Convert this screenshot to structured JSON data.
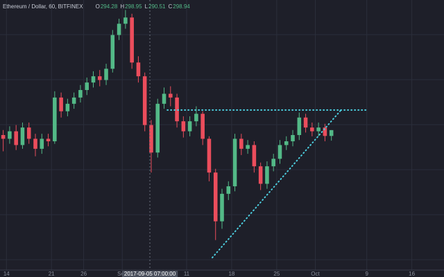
{
  "chart_data": {
    "type": "candlestick",
    "title": "Ethereum / Dollar, 60, BITFINEX",
    "ohlc_legend": [
      {
        "label": "O",
        "value": 294.28
      },
      {
        "label": "H",
        "value": 298.95
      },
      {
        "label": "L",
        "value": 290.51
      },
      {
        "label": "C",
        "value": 298.94
      }
    ],
    "x": [
      "2017-08-13",
      "2017-08-14",
      "2017-08-15",
      "2017-08-16",
      "2017-08-17",
      "2017-08-18",
      "2017-08-19",
      "2017-08-20",
      "2017-08-21",
      "2017-08-22",
      "2017-08-23",
      "2017-08-24",
      "2017-08-25",
      "2017-08-26",
      "2017-08-27",
      "2017-08-28",
      "2017-08-29",
      "2017-08-30",
      "2017-08-31",
      "2017-09-01",
      "2017-09-02",
      "2017-09-03",
      "2017-09-04",
      "2017-09-05",
      "2017-09-06",
      "2017-09-07",
      "2017-09-08",
      "2017-09-09",
      "2017-09-10",
      "2017-09-11",
      "2017-09-12",
      "2017-09-13",
      "2017-09-14",
      "2017-09-15",
      "2017-09-16",
      "2017-09-17",
      "2017-09-18",
      "2017-09-19",
      "2017-09-20",
      "2017-09-21",
      "2017-09-22",
      "2017-09-23",
      "2017-09-24",
      "2017-09-25",
      "2017-09-26",
      "2017-09-27",
      "2017-09-28",
      "2017-09-29",
      "2017-09-30",
      "2017-10-01",
      "2017-10-02",
      "2017-10-03"
    ],
    "open": [
      295,
      292,
      298,
      287,
      301,
      292,
      284,
      292,
      290,
      325,
      314,
      320,
      325,
      331,
      337,
      342,
      339,
      348,
      375,
      384,
      389,
      353,
      342,
      303,
      281,
      320,
      328,
      325,
      306,
      298,
      306,
      312,
      292,
      265,
      226,
      248,
      254,
      292,
      284,
      287,
      270,
      256,
      270,
      276,
      287,
      290,
      295,
      309,
      301,
      298,
      301,
      294.28
    ],
    "high": [
      299,
      302,
      303,
      305,
      305,
      296,
      296,
      296,
      330,
      329,
      324,
      329,
      335,
      341,
      346,
      347,
      352,
      379,
      388,
      395,
      392,
      358,
      345,
      307,
      324,
      333,
      334,
      328,
      310,
      310,
      318,
      314,
      294,
      268,
      252,
      258,
      296,
      296,
      291,
      290,
      273,
      274,
      280,
      291,
      294,
      299,
      313,
      312,
      305,
      305,
      304,
      298.95
    ],
    "low": [
      282,
      288,
      283,
      284,
      288,
      278,
      280,
      286,
      288,
      309,
      310,
      316,
      321,
      327,
      333,
      334,
      335,
      345,
      371,
      380,
      348,
      337,
      298,
      265,
      277,
      316,
      318,
      301,
      293,
      294,
      302,
      287,
      258,
      211,
      220,
      243,
      250,
      279,
      280,
      265,
      251,
      252,
      266,
      272,
      283,
      286,
      291,
      297,
      294,
      294,
      290,
      290.51
    ],
    "close": [
      292,
      298,
      287,
      301,
      292,
      284,
      292,
      290,
      325,
      314,
      320,
      325,
      331,
      337,
      342,
      339,
      348,
      375,
      384,
      389,
      353,
      342,
      303,
      281,
      320,
      328,
      325,
      306,
      298,
      306,
      312,
      292,
      265,
      226,
      248,
      254,
      292,
      284,
      287,
      270,
      256,
      270,
      276,
      287,
      290,
      295,
      309,
      301,
      298,
      301,
      294.28,
      298.94
    ],
    "up_color": "#53b987",
    "down_color": "#eb4d5c",
    "xlim": [
      "2017-08-13",
      "2017-10-21"
    ],
    "ylim": [
      187,
      403
    ],
    "xticks": [
      {
        "value": "2017-08-14",
        "label": "14"
      },
      {
        "value": "2017-08-21",
        "label": "21"
      },
      {
        "value": "2017-08-26",
        "label": "26"
      },
      {
        "value": "2017-09-01",
        "label": "Sep"
      },
      {
        "value": "2017-09-11",
        "label": "11"
      },
      {
        "value": "2017-09-18",
        "label": "18"
      },
      {
        "value": "2017-09-25",
        "label": "25"
      },
      {
        "value": "2017-10-01",
        "label": "Oct"
      },
      {
        "value": "2017-10-09",
        "label": "9"
      },
      {
        "value": "2017-10-16",
        "label": "16"
      }
    ],
    "grid": true,
    "crosshair": {
      "x": "2017-09-05 07:00:00"
    },
    "drawings": [
      {
        "x": [
          "2017-09-08",
          "2017-10-09"
        ],
        "y": [
          315,
          315
        ]
      },
      {
        "x": [
          "2017-09-15",
          "2017-10-05"
        ],
        "y": [
          197,
          315
        ]
      }
    ],
    "drawing_color": "#4dd0e1"
  }
}
